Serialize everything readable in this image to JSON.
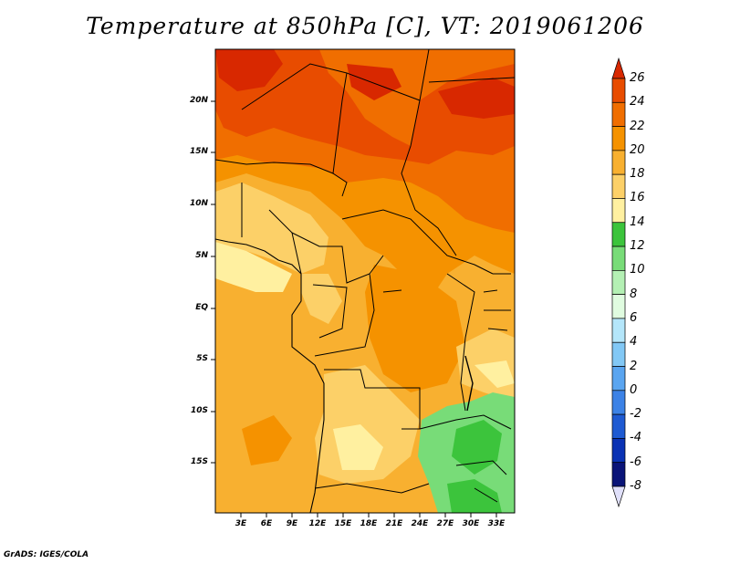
{
  "title": "Temperature at 850hPa [C], VT: 2019061206",
  "credit": "GrADS: IGES/COLA",
  "map": {
    "variable": "Temperature at 850hPa",
    "units": "C",
    "lat_labels": [
      "20N",
      "15N",
      "10N",
      "5N",
      "EQ",
      "5S",
      "10S",
      "15S"
    ],
    "lon_labels": [
      "3E",
      "6E",
      "9E",
      "12E",
      "15E",
      "18E",
      "21E",
      "24E",
      "27E",
      "30E",
      "33E"
    ]
  },
  "colorbar": {
    "labels": [
      "26",
      "24",
      "22",
      "20",
      "18",
      "16",
      "14",
      "12",
      "10",
      "8",
      "6",
      "4",
      "2",
      "0",
      "-2",
      "-4",
      "-6",
      "-8"
    ],
    "colors": [
      "#d82800",
      "#e84c00",
      "#f06e00",
      "#f59200",
      "#f8b030",
      "#fcd068",
      "#fff0a0",
      "#3cc43c",
      "#78dc78",
      "#b4f0b4",
      "#e0fce0",
      "#b4e6fa",
      "#82c8f5",
      "#5aa5f0",
      "#3c82e6",
      "#1e5ad2",
      "#0a32b4",
      "#0a1478",
      "#e0e0fa"
    ]
  }
}
